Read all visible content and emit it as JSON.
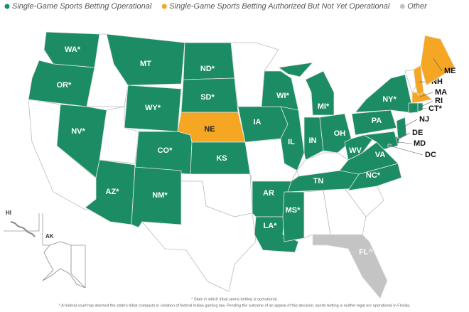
{
  "legend": [
    {
      "label": "Single-Game Sports Betting Operational",
      "color": "#1b8c63"
    },
    {
      "label": "Single-Game Sports Betting Authorized But Not Yet Operational",
      "color": "#f5a623"
    },
    {
      "label": "Other",
      "color": "#c4c4c4"
    }
  ],
  "states": [
    {
      "label": "WA*",
      "color": "#1b8c63"
    },
    {
      "label": "OR*",
      "color": "#1b8c63"
    },
    {
      "label": "NV*",
      "color": "#1b8c63"
    },
    {
      "label": "MT",
      "color": "#1b8c63"
    },
    {
      "label": "WY*",
      "color": "#1b8c63"
    },
    {
      "label": "CO*",
      "color": "#1b8c63"
    },
    {
      "label": "AZ*",
      "color": "#1b8c63"
    },
    {
      "label": "NM*",
      "color": "#1b8c63"
    },
    {
      "label": "ND*",
      "color": "#1b8c63"
    },
    {
      "label": "SD*",
      "color": "#1b8c63"
    },
    {
      "label": "NE",
      "color": "#f5a623"
    },
    {
      "label": "KS",
      "color": "#1b8c63"
    },
    {
      "label": "IA",
      "color": "#1b8c63"
    },
    {
      "label": "AR",
      "color": "#1b8c63"
    },
    {
      "label": "LA*",
      "color": "#1b8c63"
    },
    {
      "label": "WI*",
      "color": "#1b8c63"
    },
    {
      "label": "IL",
      "color": "#1b8c63"
    },
    {
      "label": "MI*",
      "color": "#1b8c63"
    },
    {
      "label": "IN",
      "color": "#1b8c63"
    },
    {
      "label": "OH",
      "color": "#1b8c63"
    },
    {
      "label": "TN",
      "color": "#1b8c63"
    },
    {
      "label": "MS*",
      "color": "#1b8c63"
    },
    {
      "label": "NC*",
      "color": "#1b8c63"
    },
    {
      "label": "VA",
      "color": "#1b8c63"
    },
    {
      "label": "WV",
      "color": "#1b8c63"
    },
    {
      "label": "PA",
      "color": "#1b8c63"
    },
    {
      "label": "NY*",
      "color": "#1b8c63"
    },
    {
      "label": "NJ",
      "color": "#1b8c63"
    },
    {
      "label": "DE",
      "color": "#1b8c63"
    },
    {
      "label": "MD",
      "color": "#1b8c63"
    },
    {
      "label": "DC",
      "color": "#1b8c63"
    },
    {
      "label": "CT*",
      "color": "#1b8c63"
    },
    {
      "label": "RI",
      "color": "#1b8c63"
    },
    {
      "label": "MA",
      "color": "#f5a623"
    },
    {
      "label": "NH",
      "color": "#f5a623"
    },
    {
      "label": "ME",
      "color": "#f5a623"
    },
    {
      "label": "FL^",
      "color": "#c4c4c4"
    }
  ],
  "insets": [
    "HI",
    "AK"
  ],
  "footnotes": [
    "* State in which tribal sports betting is operational.",
    "^ A federal court has deemed the state's tribal compacts in violation of federal Indian gaming law. Pending the outcome of an appeal of this decision, sports betting is neither legal nor operational in Florida."
  ]
}
